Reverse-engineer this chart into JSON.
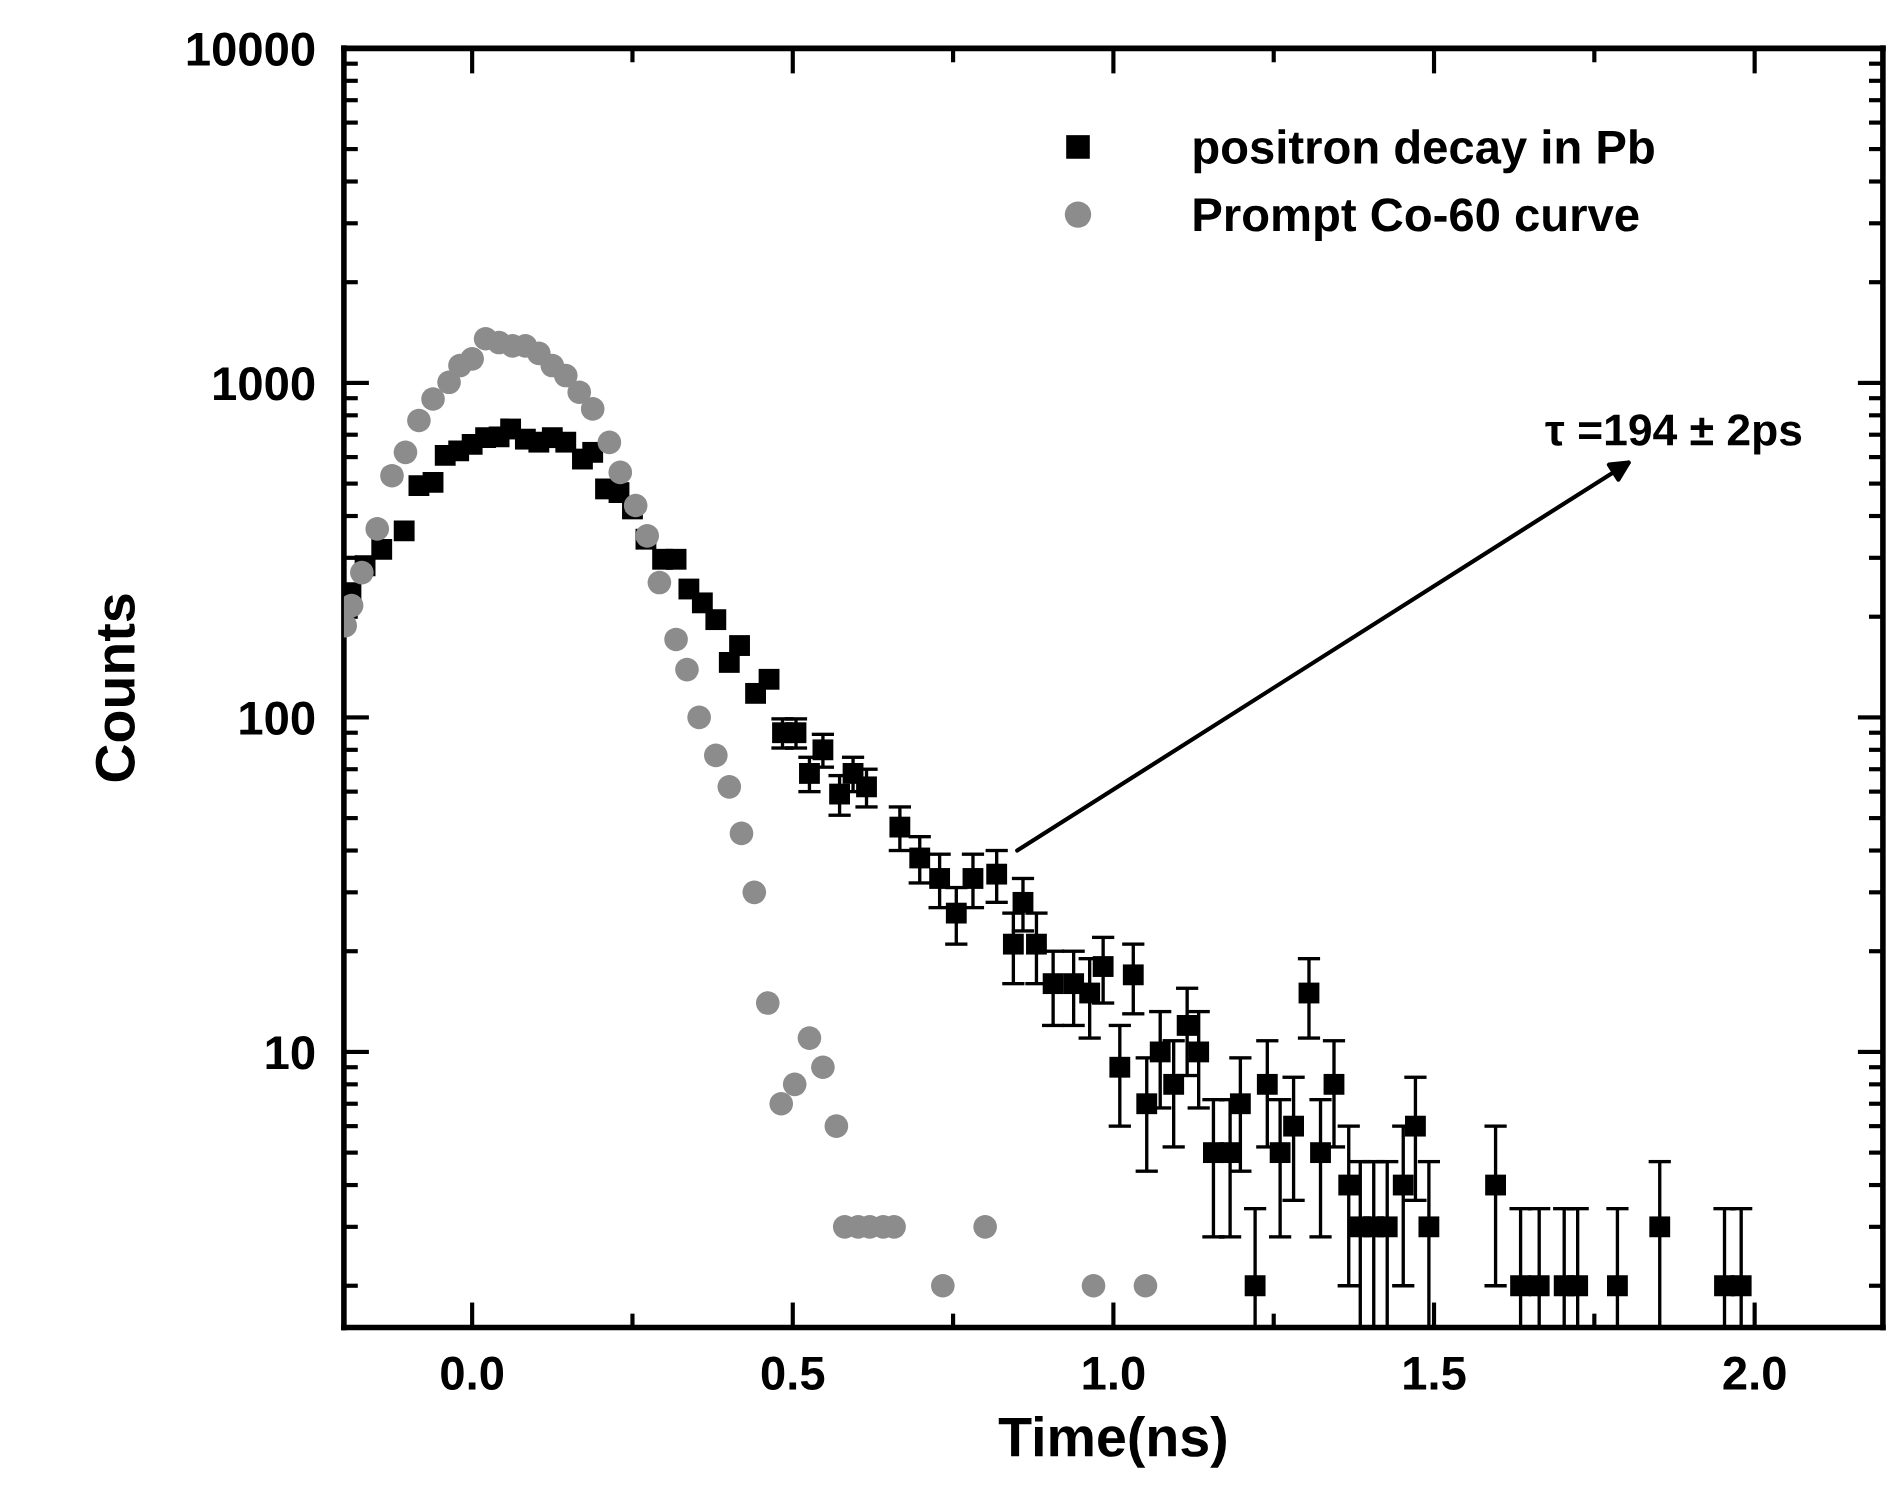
{
  "chart_data": {
    "type": "scatter",
    "xlabel": "Time(ns)",
    "ylabel": "Counts",
    "log": "y",
    "legend": "top right",
    "grid": false,
    "xlim": [
      -0.2,
      2.2
    ],
    "xticks": [
      {
        "value": 0,
        "label": "0.0"
      },
      {
        "value": 0.25,
        "label": null
      },
      0.5,
      {
        "value": 0.75,
        "label": null
      },
      {
        "value": 1,
        "label": "1.0"
      },
      {
        "value": 1.25,
        "label": null
      },
      1.5,
      {
        "value": 1.75,
        "label": null
      },
      {
        "value": 2,
        "label": "2.0"
      }
    ],
    "ylim": [
      1.5,
      10000
    ],
    "yticks": [
      10,
      100,
      1000,
      10000
    ],
    "annotations": [
      {
        "text": "τ =194 ± 2ps",
        "x": 0.85,
        "y": 40
      }
    ],
    "series": [
      {
        "name": "positron decay in Pb",
        "color": "#000000",
        "marker": "square",
        "x": [
          -0.189,
          -0.167,
          -0.141,
          -0.106,
          -0.083,
          -0.061,
          -0.042,
          -0.021,
          0.0,
          0.021,
          0.042,
          0.06,
          0.083,
          0.104,
          0.125,
          0.146,
          0.172,
          0.188,
          0.208,
          0.229,
          0.25,
          0.271,
          0.297,
          0.318,
          0.338,
          0.359,
          0.38,
          0.401,
          0.417,
          0.442,
          0.463,
          0.484,
          0.505,
          0.526,
          0.547,
          0.573,
          0.594,
          0.615,
          0.667,
          0.698,
          0.729,
          0.755,
          0.781,
          0.818,
          0.844,
          0.859,
          0.88,
          0.906,
          0.938,
          0.963,
          0.984,
          1.01,
          1.031,
          1.052,
          1.073,
          1.094,
          1.115,
          1.133,
          1.156,
          1.182,
          1.198,
          1.221,
          1.24,
          1.26,
          1.281,
          1.305,
          1.323,
          1.344,
          1.367,
          1.385,
          1.406,
          1.427,
          1.452,
          1.471,
          1.492,
          1.596,
          1.635,
          1.664,
          1.703,
          1.724,
          1.786,
          1.852,
          1.953,
          1.979
        ],
        "values": [
          236,
          284,
          318,
          361,
          493,
          504,
          607,
          626,
          655,
          686,
          690,
          728,
          679,
          665,
          686,
          665,
          592,
          620,
          482,
          470,
          420,
          341,
          297,
          297,
          242,
          220,
          196,
          146,
          164,
          118,
          130,
          90,
          90,
          68,
          80,
          59,
          68,
          62,
          47,
          38,
          33,
          26,
          33,
          34,
          21,
          28,
          21,
          16,
          16,
          15,
          18,
          9,
          17,
          7,
          10,
          8,
          12,
          10,
          5,
          5,
          7,
          2,
          8,
          5,
          6,
          15,
          5,
          8,
          4,
          3,
          3,
          3,
          4,
          6,
          3,
          4,
          2,
          2,
          2,
          2,
          2,
          3,
          2,
          2
        ],
        "errors": [
          null,
          null,
          null,
          null,
          null,
          null,
          null,
          null,
          null,
          null,
          null,
          null,
          null,
          null,
          null,
          null,
          null,
          null,
          null,
          null,
          null,
          null,
          null,
          null,
          null,
          null,
          null,
          null,
          null,
          null,
          null,
          [
            81,
            99
          ],
          [
            81,
            99
          ],
          [
            60,
            76
          ],
          [
            71,
            89
          ],
          [
            51,
            67
          ],
          [
            60,
            76
          ],
          [
            54,
            70
          ],
          [
            40,
            54
          ],
          [
            32,
            44
          ],
          [
            27,
            39
          ],
          [
            21,
            31
          ],
          [
            27,
            39
          ],
          [
            28,
            40
          ],
          [
            16,
            26
          ],
          [
            23,
            33
          ],
          [
            16,
            26
          ],
          [
            12,
            20
          ],
          [
            12,
            20
          ],
          [
            11,
            19
          ],
          [
            14,
            22
          ],
          [
            6,
            12
          ],
          [
            13,
            21
          ],
          [
            4.4,
            9.6
          ],
          [
            6.8,
            13.2
          ],
          [
            5.2,
            10.8
          ],
          [
            8.5,
            15.5
          ],
          [
            6.8,
            13.2
          ],
          [
            2.8,
            7.2
          ],
          [
            2.8,
            7.2
          ],
          [
            4.4,
            9.6
          ],
          [
            1.5,
            3.4
          ],
          [
            5.2,
            10.8
          ],
          [
            2.8,
            7.2
          ],
          [
            3.6,
            8.4
          ],
          [
            11,
            19
          ],
          [
            2.8,
            7.2
          ],
          [
            5.2,
            10.8
          ],
          [
            2,
            6
          ],
          [
            1.5,
            4.7
          ],
          [
            1.5,
            4.7
          ],
          [
            1.5,
            4.7
          ],
          [
            2,
            6
          ],
          [
            3.6,
            8.4
          ],
          [
            1.5,
            4.7
          ],
          [
            2,
            6
          ],
          [
            1.5,
            3.4
          ],
          [
            1.5,
            3.4
          ],
          [
            1.5,
            3.4
          ],
          [
            1.5,
            3.4
          ],
          [
            1.5,
            3.4
          ],
          [
            1.5,
            4.7
          ],
          [
            1.5,
            3.4
          ],
          [
            1.5,
            3.4
          ]
        ]
      },
      {
        "name": "Prompt Co-60 curve",
        "color": "#8c8c8c",
        "marker": "circle",
        "x": [
          -0.198,
          -0.188,
          -0.172,
          -0.148,
          -0.125,
          -0.104,
          -0.083,
          -0.061,
          -0.036,
          -0.019,
          0.0,
          0.021,
          0.042,
          0.063,
          0.083,
          0.104,
          0.125,
          0.146,
          0.167,
          0.188,
          0.214,
          0.231,
          0.255,
          0.273,
          0.292,
          0.318,
          0.335,
          0.354,
          0.38,
          0.401,
          0.42,
          0.44,
          0.461,
          0.482,
          0.503,
          0.526,
          0.547,
          0.568,
          0.581,
          0.602,
          0.62,
          0.641,
          0.658,
          0.734,
          0.8,
          0.969,
          1.05
        ],
        "values": [
          188,
          216,
          271,
          366,
          528,
          620,
          772,
          895,
          1004,
          1127,
          1180,
          1355,
          1320,
          1290,
          1290,
          1225,
          1127,
          1052,
          938,
          836,
          664,
          540,
          430,
          349,
          253,
          171,
          139,
          100,
          77,
          62,
          45,
          30,
          14,
          7,
          8,
          11,
          9,
          6,
          3,
          3,
          3,
          3,
          3,
          2,
          3,
          2,
          2
        ]
      }
    ]
  }
}
